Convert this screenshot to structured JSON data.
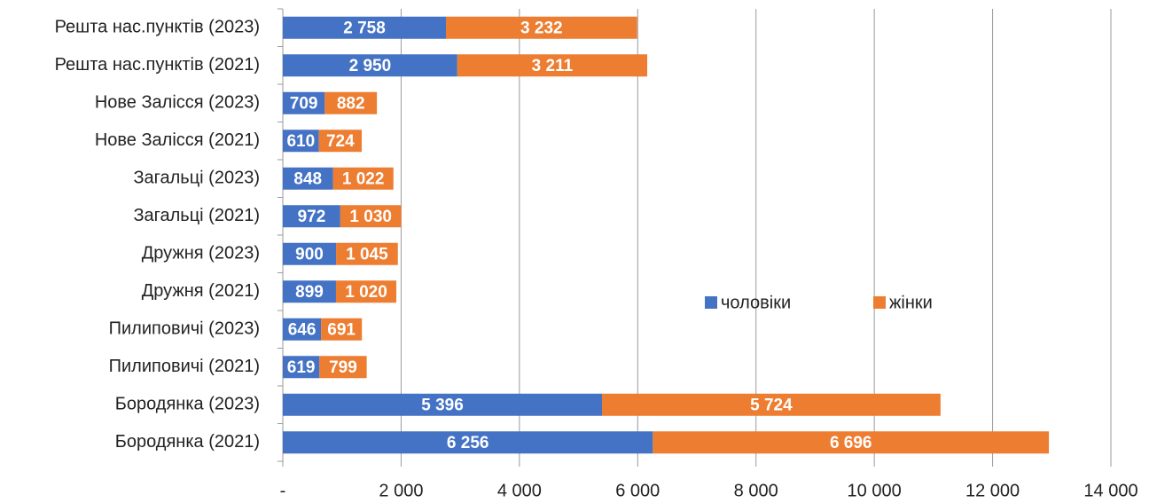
{
  "chart_data": {
    "type": "stacked-barh",
    "categories": [
      "Решта нас.пунктів (2023)",
      "Решта нас.пунктів (2021)",
      "Нове Залісся (2023)",
      "Нове Залісся (2021)",
      "Загальці (2023)",
      "Загальці (2021)",
      "Дружня (2023)",
      "Дружня (2021)",
      "Пилиповичі (2023)",
      "Пилиповичі (2021)",
      "Бородянка (2023)",
      "Бородянка (2021)"
    ],
    "series": [
      {
        "name": "чоловіки",
        "color": "#4472c4",
        "values": [
          2758,
          2950,
          709,
          610,
          848,
          972,
          900,
          899,
          646,
          619,
          5396,
          6256
        ],
        "value_labels": [
          "2 758",
          "2 950",
          "709",
          "610",
          "848",
          "972",
          "900",
          "899",
          "646",
          "619",
          "5 396",
          "6 256"
        ]
      },
      {
        "name": "жінки",
        "color": "#ed7d31",
        "values": [
          3232,
          3211,
          882,
          724,
          1022,
          1030,
          1045,
          1020,
          691,
          799,
          5724,
          6696
        ],
        "value_labels": [
          "3 232",
          "3 211",
          "882",
          "724",
          "1 022",
          "1 030",
          "1 045",
          "1 020",
          "691",
          "799",
          "5 724",
          "6 696"
        ]
      }
    ],
    "xlim": [
      0,
      14000
    ],
    "xticks": [
      {
        "value": 0,
        "label": "-"
      },
      {
        "value": 2000,
        "label": "2 000"
      },
      {
        "value": 4000,
        "label": "4 000"
      },
      {
        "value": 6000,
        "label": "6 000"
      },
      {
        "value": 8000,
        "label": "8 000"
      },
      {
        "value": 10000,
        "label": "10 000"
      },
      {
        "value": 12000,
        "label": "12 000"
      },
      {
        "value": 14000,
        "label": "14 000"
      }
    ],
    "grid": true,
    "legend": "right"
  }
}
